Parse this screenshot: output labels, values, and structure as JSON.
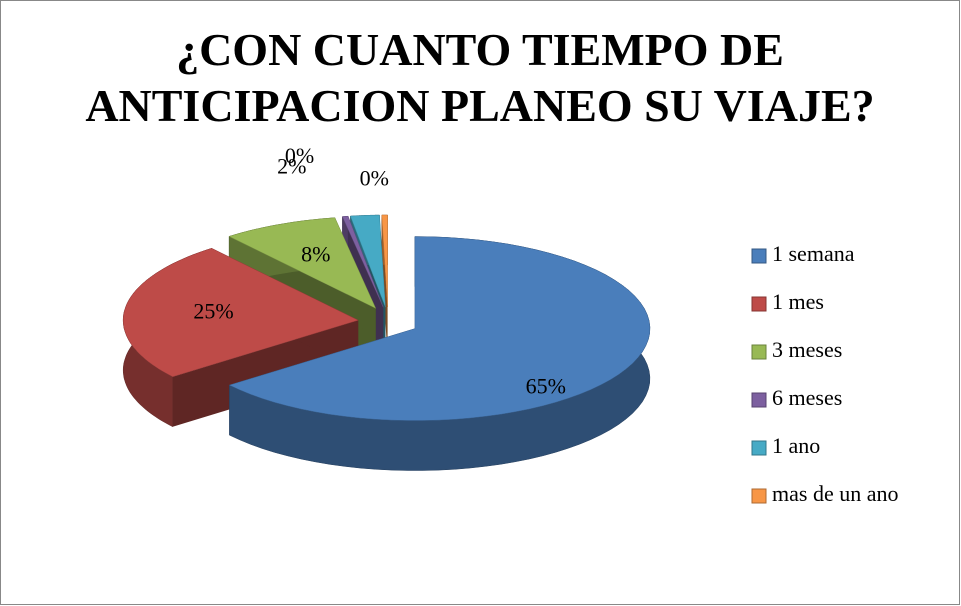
{
  "chart_data": {
    "type": "pie3d",
    "title": "¿CON CUANTO TIEMPO DE ANTICIPACION PLANEO SU VIAJE?",
    "categories": [
      "1 semana",
      "1 mes",
      "3 meses",
      "6 meses",
      "1 ano",
      "mas de un ano"
    ],
    "values": [
      65,
      25,
      8,
      0.4,
      2,
      0.4
    ],
    "value_labels": [
      "65%",
      "25%",
      "8%",
      "0%",
      "2%",
      "0%"
    ],
    "colors": [
      "#4a7ebb",
      "#be4b48",
      "#98b954",
      "#7d60a0",
      "#46aac5",
      "#f79646"
    ],
    "legend": "right"
  }
}
